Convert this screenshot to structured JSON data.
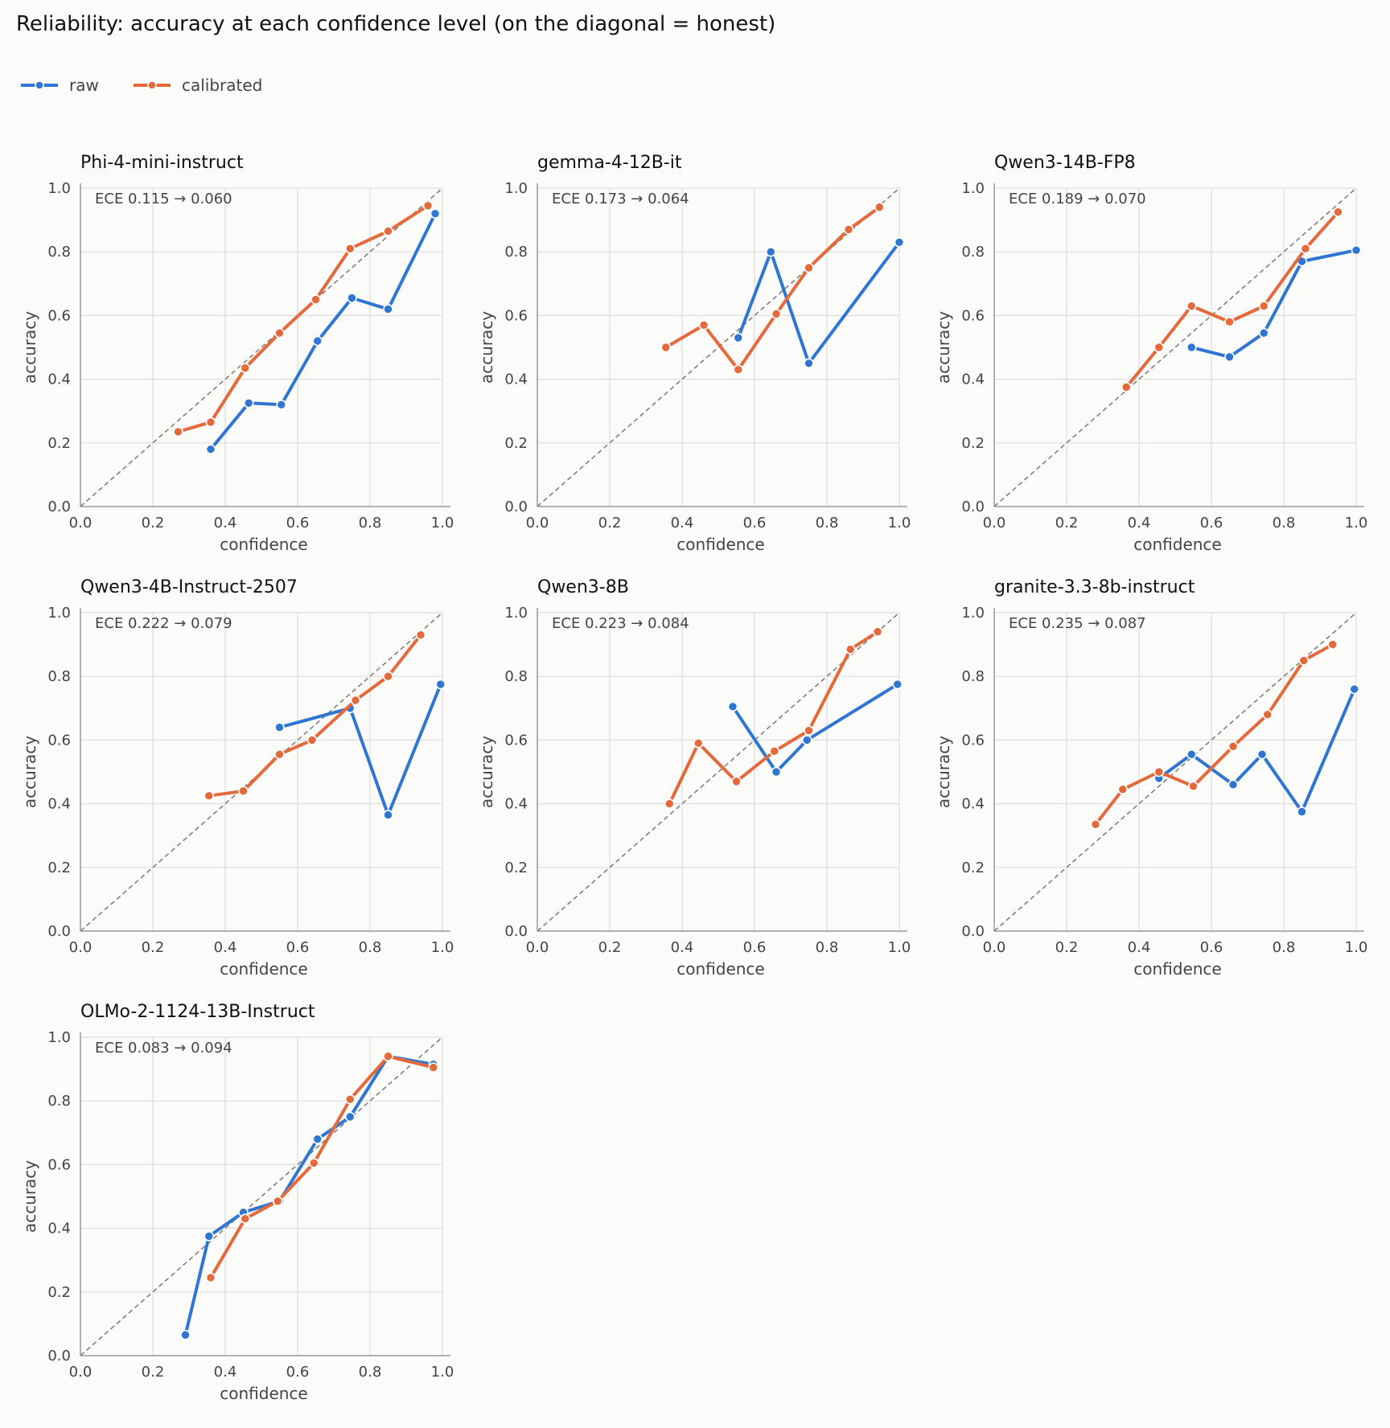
{
  "title": "Reliability: accuracy at each confidence level (on the diagonal = honest)",
  "legend": {
    "placement": "top-left",
    "entries": [
      "raw",
      "calibrated"
    ]
  },
  "colors": {
    "raw": "#2f76d2",
    "calibrated": "#e4693b",
    "diagonal": "#808080",
    "grid": "#dddddd",
    "axis": "#999999",
    "background": "#fbfbf9"
  },
  "chart_data": [
    {
      "type": "line",
      "title": "Phi-4-mini-instruct",
      "annotation": "ECE 0.115 → 0.060",
      "xlabel": "confidence",
      "ylabel": "accuracy",
      "xlim": [
        0,
        1
      ],
      "ylim": [
        0,
        1
      ],
      "xticks": [
        "0.0",
        "0.2",
        "0.4",
        "0.6",
        "0.8",
        "1.0"
      ],
      "yticks": [
        "0.0",
        "0.2",
        "0.4",
        "0.6",
        "0.8",
        "1.0"
      ],
      "grid": true,
      "diagonal": true,
      "series": [
        {
          "name": "raw",
          "x": [
            0.36,
            0.465,
            0.555,
            0.655,
            0.75,
            0.85,
            0.98
          ],
          "y": [
            0.18,
            0.325,
            0.32,
            0.52,
            0.655,
            0.62,
            0.92
          ]
        },
        {
          "name": "calibrated",
          "x": [
            0.27,
            0.36,
            0.455,
            0.55,
            0.65,
            0.745,
            0.85,
            0.96
          ],
          "y": [
            0.235,
            0.265,
            0.435,
            0.545,
            0.65,
            0.81,
            0.865,
            0.945
          ]
        }
      ]
    },
    {
      "type": "line",
      "title": "gemma-4-12B-it",
      "annotation": "ECE 0.173 → 0.064",
      "xlabel": "confidence",
      "ylabel": "accuracy",
      "xlim": [
        0,
        1
      ],
      "ylim": [
        0,
        1
      ],
      "xticks": [
        "0.0",
        "0.2",
        "0.4",
        "0.6",
        "0.8",
        "1.0"
      ],
      "yticks": [
        "0.0",
        "0.2",
        "0.4",
        "0.6",
        "0.8",
        "1.0"
      ],
      "grid": true,
      "diagonal": true,
      "series": [
        {
          "name": "raw",
          "x": [
            0.555,
            0.645,
            0.75,
            1.0
          ],
          "y": [
            0.53,
            0.8,
            0.45,
            0.83
          ]
        },
        {
          "name": "calibrated",
          "x": [
            0.355,
            0.46,
            0.555,
            0.66,
            0.75,
            0.86,
            0.945
          ],
          "y": [
            0.5,
            0.57,
            0.43,
            0.605,
            0.75,
            0.87,
            0.94
          ]
        }
      ]
    },
    {
      "type": "line",
      "title": "Qwen3-14B-FP8",
      "annotation": "ECE 0.189 → 0.070",
      "xlabel": "confidence",
      "ylabel": "accuracy",
      "xlim": [
        0,
        1
      ],
      "ylim": [
        0,
        1
      ],
      "xticks": [
        "0.0",
        "0.2",
        "0.4",
        "0.6",
        "0.8",
        "1.0"
      ],
      "yticks": [
        "0.0",
        "0.2",
        "0.4",
        "0.6",
        "0.8",
        "1.0"
      ],
      "grid": true,
      "diagonal": true,
      "series": [
        {
          "name": "raw",
          "x": [
            0.545,
            0.65,
            0.745,
            0.85,
            1.0
          ],
          "y": [
            0.5,
            0.47,
            0.545,
            0.77,
            0.805
          ]
        },
        {
          "name": "calibrated",
          "x": [
            0.365,
            0.455,
            0.545,
            0.65,
            0.745,
            0.86,
            0.95
          ],
          "y": [
            0.375,
            0.5,
            0.63,
            0.58,
            0.63,
            0.81,
            0.925
          ]
        }
      ]
    },
    {
      "type": "line",
      "title": "Qwen3-4B-Instruct-2507",
      "annotation": "ECE 0.222 → 0.079",
      "xlabel": "confidence",
      "ylabel": "accuracy",
      "xlim": [
        0,
        1
      ],
      "ylim": [
        0,
        1
      ],
      "xticks": [
        "0.0",
        "0.2",
        "0.4",
        "0.6",
        "0.8",
        "1.0"
      ],
      "yticks": [
        "0.0",
        "0.2",
        "0.4",
        "0.6",
        "0.8",
        "1.0"
      ],
      "grid": true,
      "diagonal": true,
      "series": [
        {
          "name": "raw",
          "x": [
            0.55,
            0.745,
            0.85,
            0.995
          ],
          "y": [
            0.64,
            0.7,
            0.365,
            0.775
          ]
        },
        {
          "name": "calibrated",
          "x": [
            0.355,
            0.45,
            0.55,
            0.64,
            0.76,
            0.85,
            0.94
          ],
          "y": [
            0.425,
            0.44,
            0.555,
            0.6,
            0.725,
            0.8,
            0.93
          ]
        }
      ]
    },
    {
      "type": "line",
      "title": "Qwen3-8B",
      "annotation": "ECE 0.223 → 0.084",
      "xlabel": "confidence",
      "ylabel": "accuracy",
      "xlim": [
        0,
        1
      ],
      "ylim": [
        0,
        1
      ],
      "xticks": [
        "0.0",
        "0.2",
        "0.4",
        "0.6",
        "0.8",
        "1.0"
      ],
      "yticks": [
        "0.0",
        "0.2",
        "0.4",
        "0.6",
        "0.8",
        "1.0"
      ],
      "grid": true,
      "diagonal": true,
      "series": [
        {
          "name": "raw",
          "x": [
            0.54,
            0.66,
            0.745,
            0.995
          ],
          "y": [
            0.705,
            0.5,
            0.6,
            0.775
          ]
        },
        {
          "name": "calibrated",
          "x": [
            0.365,
            0.445,
            0.55,
            0.655,
            0.75,
            0.865,
            0.94
          ],
          "y": [
            0.4,
            0.59,
            0.47,
            0.565,
            0.63,
            0.885,
            0.94
          ]
        }
      ]
    },
    {
      "type": "line",
      "title": "granite-3.3-8b-instruct",
      "annotation": "ECE 0.235 → 0.087",
      "xlabel": "confidence",
      "ylabel": "accuracy",
      "xlim": [
        0,
        1
      ],
      "ylim": [
        0,
        1
      ],
      "xticks": [
        "0.0",
        "0.2",
        "0.4",
        "0.6",
        "0.8",
        "1.0"
      ],
      "yticks": [
        "0.0",
        "0.2",
        "0.4",
        "0.6",
        "0.8",
        "1.0"
      ],
      "grid": true,
      "diagonal": true,
      "series": [
        {
          "name": "raw",
          "x": [
            0.455,
            0.545,
            0.66,
            0.74,
            0.85,
            0.995
          ],
          "y": [
            0.48,
            0.555,
            0.46,
            0.555,
            0.375,
            0.76
          ]
        },
        {
          "name": "calibrated",
          "x": [
            0.28,
            0.355,
            0.455,
            0.55,
            0.66,
            0.755,
            0.855,
            0.935
          ],
          "y": [
            0.335,
            0.445,
            0.5,
            0.455,
            0.58,
            0.68,
            0.85,
            0.9
          ]
        }
      ]
    },
    {
      "type": "line",
      "title": "OLMo-2-1124-13B-Instruct",
      "annotation": "ECE 0.083 → 0.094",
      "xlabel": "confidence",
      "ylabel": "accuracy",
      "xlim": [
        0,
        1
      ],
      "ylim": [
        0,
        1
      ],
      "xticks": [
        "0.0",
        "0.2",
        "0.4",
        "0.6",
        "0.8",
        "1.0"
      ],
      "yticks": [
        "0.0",
        "0.2",
        "0.4",
        "0.6",
        "0.8",
        "1.0"
      ],
      "grid": true,
      "diagonal": true,
      "series": [
        {
          "name": "raw",
          "x": [
            0.29,
            0.355,
            0.45,
            0.55,
            0.655,
            0.745,
            0.85,
            0.975
          ],
          "y": [
            0.065,
            0.375,
            0.45,
            0.485,
            0.68,
            0.75,
            0.94,
            0.915
          ]
        },
        {
          "name": "calibrated",
          "x": [
            0.36,
            0.455,
            0.545,
            0.645,
            0.745,
            0.85,
            0.975
          ],
          "y": [
            0.245,
            0.43,
            0.485,
            0.605,
            0.805,
            0.94,
            0.905
          ]
        }
      ]
    }
  ]
}
